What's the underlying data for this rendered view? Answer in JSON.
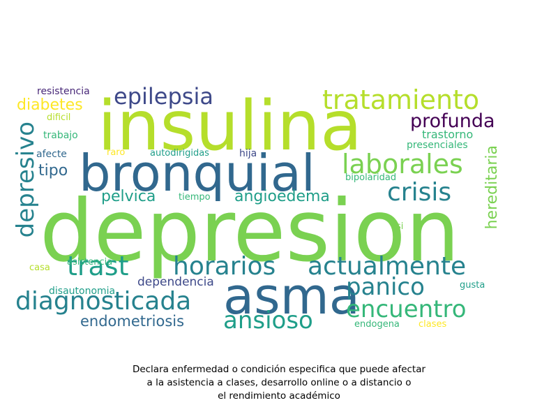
{
  "wordcloud": {
    "words": [
      "depresion",
      "insulina",
      "bronquial",
      "asma",
      "tratamiento",
      "laborales",
      "crisis",
      "depresivo",
      "epilepsia",
      "profunda",
      "trast",
      "horarios",
      "actualmente",
      "diagnosticada",
      "panico",
      "encuentro",
      "ansioso",
      "hereditaria",
      "diabetes",
      "angioedema",
      "pelvica",
      "endometriosis",
      "tipo",
      "dependencia",
      "resistencia",
      "dificil",
      "trabajo",
      "trastorno",
      "presenciales",
      "afecte",
      "raro",
      "autodirigidas",
      "hija",
      "tiempo",
      "bipolaridad",
      "si",
      "asistencia",
      "casa",
      "disautonomia",
      "gusta",
      "endogena",
      "clases"
    ],
    "colors": {
      "yellow_green": "#b5de2b",
      "light_green": "#7ad151",
      "green": "#35b779",
      "teal": "#1f9e89",
      "dark_teal": "#26828e",
      "blue": "#31688e",
      "indigo": "#3e4989",
      "purple": "#482878",
      "dark_purple": "#440154",
      "yellow": "#fde725"
    }
  },
  "caption": {
    "line1": "Declara enfermedad o condición especifica que puede afectar",
    "line2": "a la asistencia a clases, desarrollo online o a distancio o",
    "line3": "el rendimiento académico"
  }
}
